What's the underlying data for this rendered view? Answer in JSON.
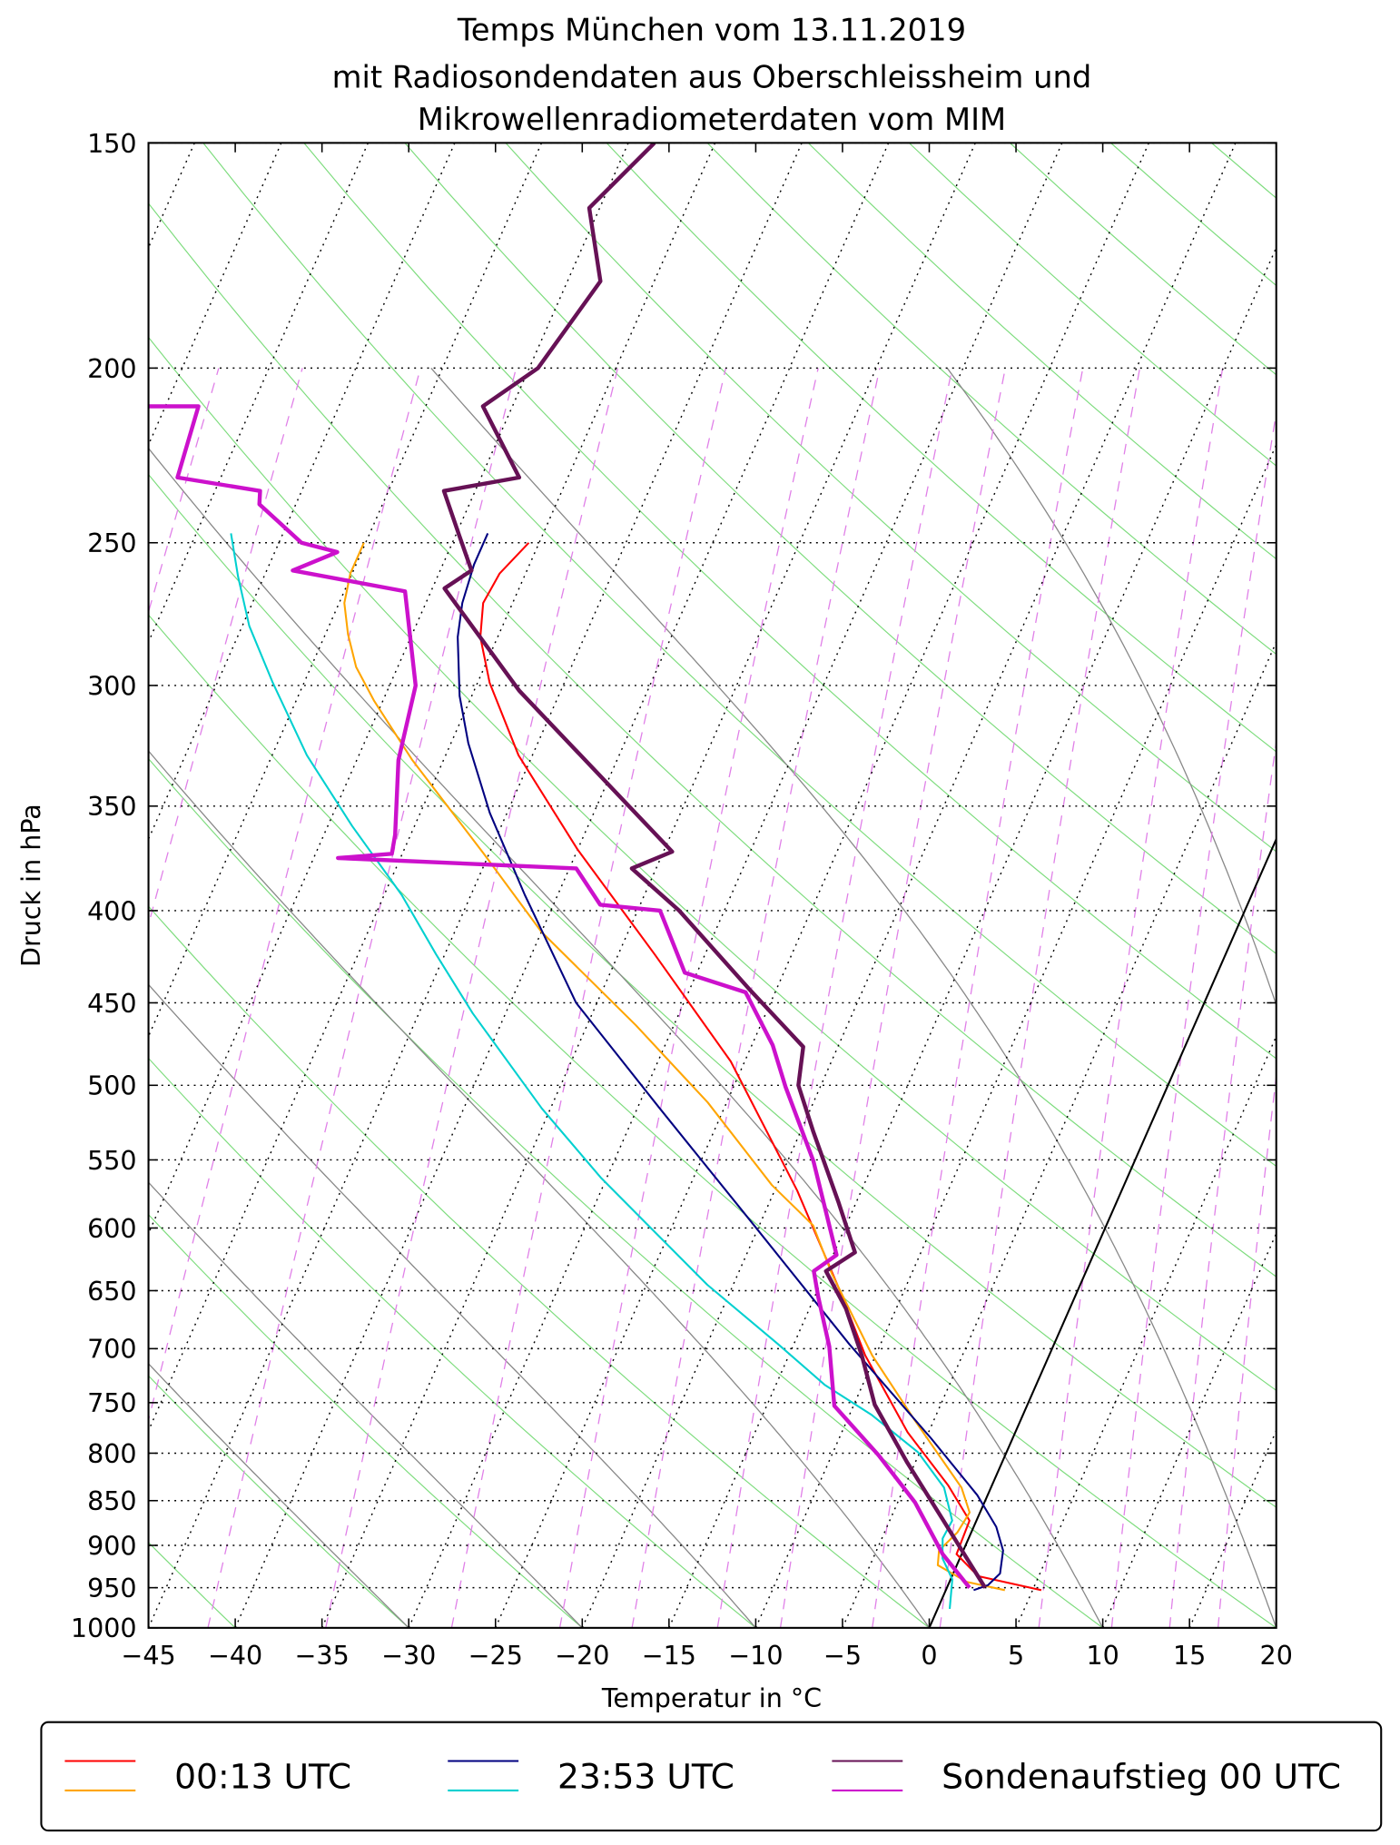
{
  "chart_data": {
    "type": "skewt",
    "title": [
      "Temps München vom 13.11.2019",
      "mit Radiosondendaten aus Oberschleissheim und",
      "Mikrowellenradiometerdaten vom MIM"
    ],
    "xlabel": "Temperatur in °C",
    "ylabel": "Druck in hPa",
    "xlim": [
      -45,
      20
    ],
    "ylim": [
      1000,
      150
    ],
    "log_scale": true,
    "xticks": [
      {
        "value": -45,
        "label": "−45"
      },
      {
        "value": -40,
        "label": "−40"
      },
      {
        "value": -35,
        "label": "−35"
      },
      {
        "value": -30,
        "label": "−30"
      },
      {
        "value": -25,
        "label": "−25"
      },
      {
        "value": -20,
        "label": "−20"
      },
      {
        "value": -15,
        "label": "−15"
      },
      {
        "value": -10,
        "label": "−10"
      },
      {
        "value": -5,
        "label": "−5"
      },
      0,
      5,
      10,
      15,
      20
    ],
    "yticks": [
      150,
      200,
      250,
      300,
      350,
      400,
      450,
      500,
      550,
      600,
      650,
      700,
      750,
      800,
      850,
      900,
      950,
      1000
    ],
    "grid": true,
    "profiles": [
      {
        "name": "00:13 UTC",
        "temperature": {
          "color": "#ff0000",
          "pressure": [
            953,
            936,
            910,
            872,
            834,
            779,
            706,
            650,
            572,
            485,
            423,
            370,
            328,
            299,
            282,
            270,
            260,
            250
          ],
          "values": [
            5.5,
            1.5,
            -0.3,
            -0.4,
            -2.5,
            -6.2,
            -10.6,
            -13.7,
            -18.7,
            -25.8,
            -32.9,
            -40.0,
            -45.8,
            -49.3,
            -51.0,
            -51.7,
            -51.5,
            -50.6
          ]
        },
        "dewpoint": {
          "color": "#ffa500",
          "pressure": [
            953,
            943,
            923,
            906,
            885,
            863,
            836,
            767,
            706,
            636,
            598,
            568,
            511,
            463,
            411,
            372,
            330,
            306,
            293,
            281,
            270,
            260,
            250
          ],
          "values": [
            3.4,
            1.0,
            -1.1,
            -1.4,
            -0.8,
            -0.6,
            -1.7,
            -6.1,
            -10.2,
            -14.6,
            -16.9,
            -20.3,
            -26.1,
            -32.2,
            -40.0,
            -45.3,
            -51.8,
            -55.5,
            -57.4,
            -58.7,
            -59.7,
            -60.1,
            -60.1
          ]
        }
      },
      {
        "name": "23:53 UTC",
        "temperature": {
          "color": "#000080",
          "pressure": [
            953,
            947,
            933,
            906,
            879,
            844,
            785,
            696,
            598,
            515,
            450,
            392,
            353,
            323,
            304,
            282,
            270,
            257,
            247
          ],
          "values": [
            1.6,
            2.3,
            2.7,
            2.3,
            1.3,
            -0.6,
            -4.7,
            -11.8,
            -20.3,
            -28.7,
            -36.2,
            -41.9,
            -46.0,
            -49.0,
            -50.7,
            -52.3,
            -52.9,
            -53.2,
            -53.2
          ]
        },
        "dewpoint": {
          "color": "#00d0d0",
          "pressure": [
            976,
            940,
            915,
            892,
            872,
            836,
            799,
            762,
            733,
            696,
            645,
            598,
            563,
            515,
            456,
            423,
            392,
            359,
            328,
            299,
            278,
            261,
            247
          ],
          "values": [
            0.7,
            0.1,
            -1.0,
            -1.5,
            -1.4,
            -2.7,
            -5.1,
            -8.7,
            -12.2,
            -15.9,
            -21.5,
            -26.4,
            -30.3,
            -35.5,
            -41.9,
            -45.5,
            -49.0,
            -53.6,
            -58.0,
            -61.8,
            -64.6,
            -66.5,
            -68.0
          ]
        }
      },
      {
        "name": "Sondenaufstieg 00 UTC",
        "temperature": {
          "color": "#661155",
          "pressure": [
            950,
            915,
            872,
            809,
            752,
            706,
            665,
            634,
            619,
            581,
            530,
            500,
            476,
            442,
            400,
            379,
            371,
            302,
            265,
            259,
            249,
            234,
            230,
            210,
            200,
            179,
            163,
            150
          ],
          "values": [
            2.2,
            0.4,
            -1.9,
            -5.5,
            -8.8,
            -10.8,
            -12.9,
            -15.0,
            -13.8,
            -16.0,
            -19.3,
            -21.3,
            -22.0,
            -26.6,
            -32.6,
            -36.4,
            -34.5,
            -47.4,
            -54.3,
            -53.2,
            -54.6,
            -56.8,
            -52.8,
            -56.7,
            -54.5,
            -53.1,
            -55.6,
            -53.5
          ]
        },
        "dewpoint": {
          "color": "#cc11cc",
          "pressure": [
            950,
            910,
            852,
            802,
            753,
            698,
            655,
            634,
            621,
            551,
            501,
            475,
            444,
            433,
            400,
            397,
            379,
            374,
            372,
            363,
            330,
            300,
            266,
            259,
            253,
            250,
            238,
            234,
            230,
            210,
            210
          ],
          "values": [
            1.3,
            -1.1,
            -4.0,
            -7.3,
            -11.1,
            -12.9,
            -14.8,
            -15.7,
            -14.8,
            -18.5,
            -22.0,
            -23.8,
            -26.7,
            -30.7,
            -33.7,
            -37.3,
            -39.6,
            -53.6,
            -50.6,
            -50.9,
            -52.6,
            -53.5,
            -56.5,
            -63.5,
            -61.4,
            -63.7,
            -67.1,
            -67.4,
            -72.5,
            -73.1,
            -76.0
          ]
        }
      }
    ]
  }
}
